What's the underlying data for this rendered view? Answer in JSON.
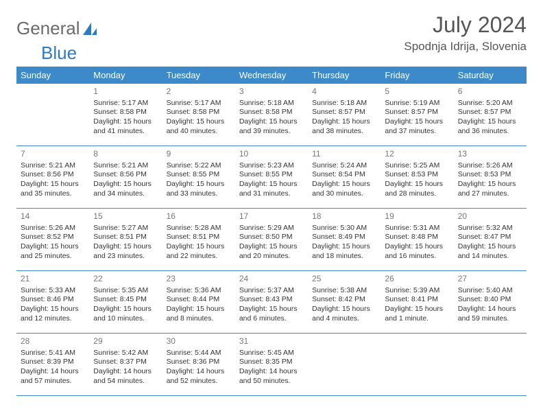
{
  "logo": {
    "text1": "General",
    "text2": "Blue"
  },
  "header": {
    "month": "July 2024",
    "location": "Spodnja Idrija, Slovenia"
  },
  "colors": {
    "header_bg": "#3c8ac9",
    "header_text": "#ffffff",
    "daynum": "#777777",
    "body_text": "#333333",
    "rule": "#3c8ac9",
    "logo_gray": "#6a6a6a",
    "logo_blue": "#2f7bbf"
  },
  "weekdays": [
    "Sunday",
    "Monday",
    "Tuesday",
    "Wednesday",
    "Thursday",
    "Friday",
    "Saturday"
  ],
  "weeks": [
    [
      null,
      {
        "n": "1",
        "sr": "5:17 AM",
        "ss": "8:58 PM",
        "dl": "15 hours and 41 minutes."
      },
      {
        "n": "2",
        "sr": "5:17 AM",
        "ss": "8:58 PM",
        "dl": "15 hours and 40 minutes."
      },
      {
        "n": "3",
        "sr": "5:18 AM",
        "ss": "8:58 PM",
        "dl": "15 hours and 39 minutes."
      },
      {
        "n": "4",
        "sr": "5:18 AM",
        "ss": "8:57 PM",
        "dl": "15 hours and 38 minutes."
      },
      {
        "n": "5",
        "sr": "5:19 AM",
        "ss": "8:57 PM",
        "dl": "15 hours and 37 minutes."
      },
      {
        "n": "6",
        "sr": "5:20 AM",
        "ss": "8:57 PM",
        "dl": "15 hours and 36 minutes."
      }
    ],
    [
      {
        "n": "7",
        "sr": "5:21 AM",
        "ss": "8:56 PM",
        "dl": "15 hours and 35 minutes."
      },
      {
        "n": "8",
        "sr": "5:21 AM",
        "ss": "8:56 PM",
        "dl": "15 hours and 34 minutes."
      },
      {
        "n": "9",
        "sr": "5:22 AM",
        "ss": "8:55 PM",
        "dl": "15 hours and 33 minutes."
      },
      {
        "n": "10",
        "sr": "5:23 AM",
        "ss": "8:55 PM",
        "dl": "15 hours and 31 minutes."
      },
      {
        "n": "11",
        "sr": "5:24 AM",
        "ss": "8:54 PM",
        "dl": "15 hours and 30 minutes."
      },
      {
        "n": "12",
        "sr": "5:25 AM",
        "ss": "8:53 PM",
        "dl": "15 hours and 28 minutes."
      },
      {
        "n": "13",
        "sr": "5:26 AM",
        "ss": "8:53 PM",
        "dl": "15 hours and 27 minutes."
      }
    ],
    [
      {
        "n": "14",
        "sr": "5:26 AM",
        "ss": "8:52 PM",
        "dl": "15 hours and 25 minutes."
      },
      {
        "n": "15",
        "sr": "5:27 AM",
        "ss": "8:51 PM",
        "dl": "15 hours and 23 minutes."
      },
      {
        "n": "16",
        "sr": "5:28 AM",
        "ss": "8:51 PM",
        "dl": "15 hours and 22 minutes."
      },
      {
        "n": "17",
        "sr": "5:29 AM",
        "ss": "8:50 PM",
        "dl": "15 hours and 20 minutes."
      },
      {
        "n": "18",
        "sr": "5:30 AM",
        "ss": "8:49 PM",
        "dl": "15 hours and 18 minutes."
      },
      {
        "n": "19",
        "sr": "5:31 AM",
        "ss": "8:48 PM",
        "dl": "15 hours and 16 minutes."
      },
      {
        "n": "20",
        "sr": "5:32 AM",
        "ss": "8:47 PM",
        "dl": "15 hours and 14 minutes."
      }
    ],
    [
      {
        "n": "21",
        "sr": "5:33 AM",
        "ss": "8:46 PM",
        "dl": "15 hours and 12 minutes."
      },
      {
        "n": "22",
        "sr": "5:35 AM",
        "ss": "8:45 PM",
        "dl": "15 hours and 10 minutes."
      },
      {
        "n": "23",
        "sr": "5:36 AM",
        "ss": "8:44 PM",
        "dl": "15 hours and 8 minutes."
      },
      {
        "n": "24",
        "sr": "5:37 AM",
        "ss": "8:43 PM",
        "dl": "15 hours and 6 minutes."
      },
      {
        "n": "25",
        "sr": "5:38 AM",
        "ss": "8:42 PM",
        "dl": "15 hours and 4 minutes."
      },
      {
        "n": "26",
        "sr": "5:39 AM",
        "ss": "8:41 PM",
        "dl": "15 hours and 1 minute."
      },
      {
        "n": "27",
        "sr": "5:40 AM",
        "ss": "8:40 PM",
        "dl": "14 hours and 59 minutes."
      }
    ],
    [
      {
        "n": "28",
        "sr": "5:41 AM",
        "ss": "8:39 PM",
        "dl": "14 hours and 57 minutes."
      },
      {
        "n": "29",
        "sr": "5:42 AM",
        "ss": "8:37 PM",
        "dl": "14 hours and 54 minutes."
      },
      {
        "n": "30",
        "sr": "5:44 AM",
        "ss": "8:36 PM",
        "dl": "14 hours and 52 minutes."
      },
      {
        "n": "31",
        "sr": "5:45 AM",
        "ss": "8:35 PM",
        "dl": "14 hours and 50 minutes."
      },
      null,
      null,
      null
    ]
  ],
  "labels": {
    "sunrise": "Sunrise:",
    "sunset": "Sunset:",
    "daylight": "Daylight:"
  }
}
